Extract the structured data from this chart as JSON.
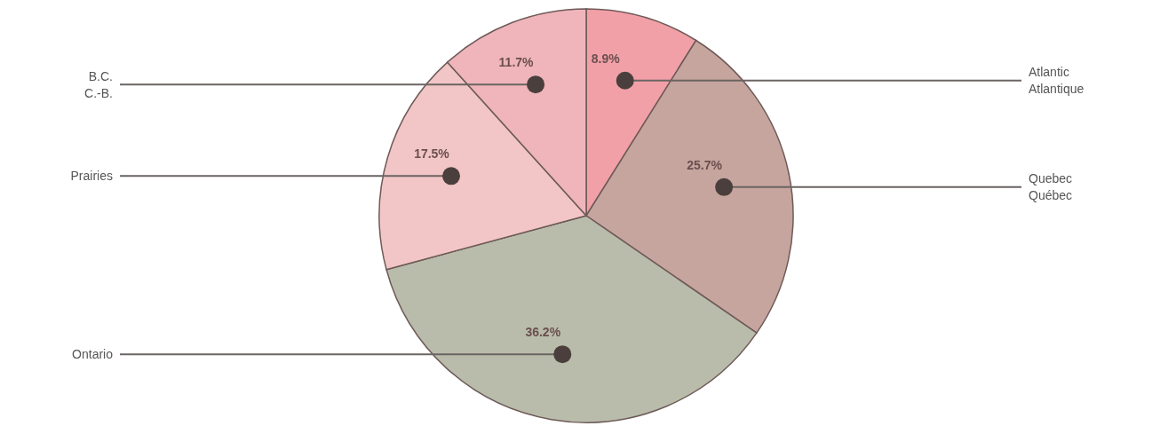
{
  "chart_data": {
    "type": "pie",
    "categories": [
      "Atlantic\nAtlantique",
      "Quebec\nQuébec",
      "Ontario",
      "Prairies",
      "B.C.\nC.-B."
    ],
    "values": [
      8.9,
      25.7,
      36.2,
      17.5,
      11.7
    ],
    "value_labels": [
      "8.9%",
      "25.7%",
      "36.2%",
      "17.5%",
      "11.7%"
    ],
    "colors": [
      "#f2a0a8",
      "#c6a59e",
      "#b9bcaa",
      "#f2c6c6",
      "#efb5ba"
    ]
  }
}
